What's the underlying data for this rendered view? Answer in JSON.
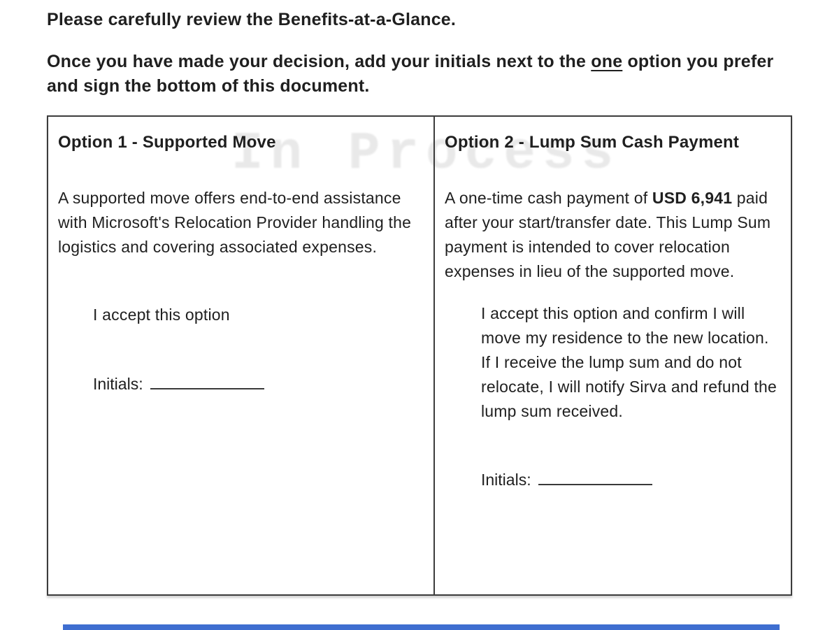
{
  "page": {
    "intro_line1": "Please carefully review the Benefits-at-a-Glance.",
    "intro2_pre": "Once you have made your decision, add your initials next to the ",
    "intro2_underlined": "one",
    "intro2_post": " option you prefer and sign the bottom of this document.",
    "watermark": "In Process"
  },
  "options": {
    "option1": {
      "title": "Option 1 - Supported Move",
      "body": "A supported move offers end-to-end assistance with Microsoft's Relocation Provider handling the logistics and covering associated expenses.",
      "accept": "I accept this option",
      "initials_label": "Initials:"
    },
    "option2": {
      "title": "Option 2 - Lump Sum Cash Payment",
      "body_pre": "A one-time cash payment of ",
      "amount": "USD 6,941",
      "body_post": " paid after your start/transfer date. This Lump Sum payment is intended to cover relocation expenses in lieu of the supported move.",
      "accept": "I accept this option and confirm I will move my residence to the new location. If I receive the lump sum and do not relocate, I will notify Sirva and refund the lump sum received.",
      "initials_label": "Initials:"
    }
  },
  "colors": {
    "accent_bar": "#3e6ed0",
    "watermark_gray": "#e9e9e9"
  }
}
